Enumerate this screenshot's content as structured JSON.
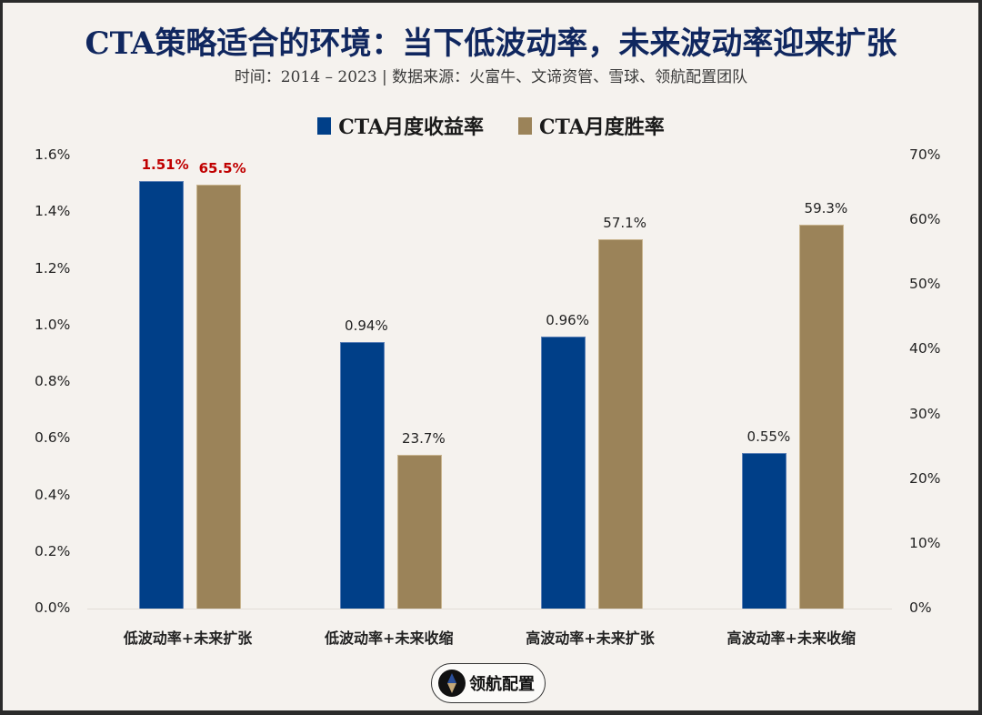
{
  "header": {
    "title": "CTA策略适合的环境：当下低波动率，未来波动率迎来扩张",
    "subtitle": "时间：2014 – 2023 | 数据来源：火富牛、文谛资管、雪球、领航配置团队"
  },
  "legend": [
    {
      "label": "CTA月度收益率",
      "color": "#003f88"
    },
    {
      "label": "CTA月度胜率",
      "color": "#9b8359"
    }
  ],
  "axes": {
    "left_ticks": [
      "1.6%",
      "1.4%",
      "1.2%",
      "1.0%",
      "0.8%",
      "0.6%",
      "0.4%",
      "0.2%",
      "0.0%"
    ],
    "right_ticks": [
      "70%",
      "60%",
      "50%",
      "40%",
      "30%",
      "20%",
      "10%",
      "0%"
    ]
  },
  "logo": {
    "text": "领航配置"
  },
  "chart_data": {
    "type": "bar",
    "title": "CTA策略适合的环境：当下低波动率，未来波动率迎来扩张",
    "subtitle": "时间：2014 – 2023 | 数据来源：火富牛、文谛资管、雪球、领航配置团队",
    "categories": [
      "低波动率+未来扩张",
      "低波动率+未来收缩",
      "高波动率+未来扩张",
      "高波动率+未来收缩"
    ],
    "series": [
      {
        "name": "CTA月度收益率",
        "axis": "left",
        "color": "#003f88",
        "values": [
          1.51,
          0.94,
          0.96,
          0.55
        ],
        "labels": [
          "1.51%",
          "0.94%",
          "0.96%",
          "0.55%"
        ]
      },
      {
        "name": "CTA月度胜率",
        "axis": "right",
        "color": "#9b8359",
        "values": [
          65.5,
          23.7,
          57.1,
          59.3
        ],
        "labels": [
          "65.5%",
          "23.7%",
          "57.1%",
          "59.3%"
        ]
      }
    ],
    "highlighted_category_index": 0,
    "highlight_color": "#c00000",
    "ylabel_left": "",
    "ylabel_right": "",
    "xlabel": "",
    "ylim_left": [
      0,
      1.6
    ],
    "ylim_right": [
      0,
      70
    ],
    "legend_position": "top",
    "grid": false
  }
}
